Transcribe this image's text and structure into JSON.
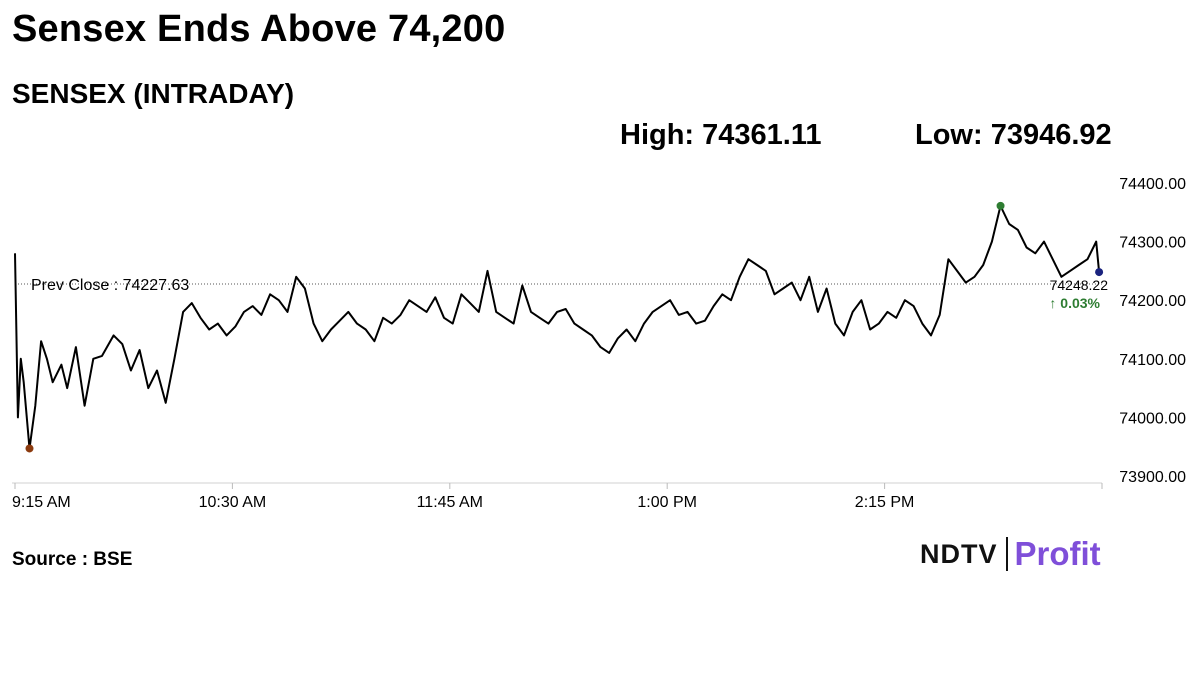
{
  "header": {
    "title": "Sensex Ends Above 74,200",
    "subtitle": "SENSEX (INTRADAY)",
    "high_label": "High: 74361.11",
    "low_label": "Low: 73946.92"
  },
  "footer": {
    "source": "Source : BSE",
    "logo_left": "NDTV",
    "logo_right": "Profit"
  },
  "colors": {
    "line": "#000000",
    "high_marker": "#2e7d32",
    "low_marker": "#8b3a0e",
    "last_marker": "#1a237e",
    "change_text": "#2e7d32",
    "logo_accent": "#7f4fd9"
  },
  "chart_data": {
    "type": "line",
    "title": "SENSEX (INTRADAY)",
    "x_tick_labels": [
      "9:15 AM",
      "10:30 AM",
      "11:45 AM",
      "1:00 PM",
      "2:15 PM"
    ],
    "y_tick_labels": [
      "74400.00",
      "74300.00",
      "74200.00",
      "74100.00",
      "74000.00",
      "73900.00"
    ],
    "y_ticks": [
      74400,
      74300,
      74200,
      74100,
      74000,
      73900
    ],
    "ylim": [
      73900,
      74400
    ],
    "x_range_minutes": [
      "9:15",
      "15:30"
    ],
    "prev_close": 74227.63,
    "prev_close_label": "Prev Close : 74227.63",
    "last_value": 74248.22,
    "last_value_label": "74248.22",
    "change_label": "↑ 0.03%",
    "high": 74361.11,
    "low": 73946.92,
    "grid": false,
    "series": [
      {
        "x": [
          "9:15",
          "9:16",
          "9:17",
          "9:18",
          "9:20",
          "9:22",
          "9:24",
          "9:26",
          "9:28",
          "9:31",
          "9:33",
          "9:36",
          "9:39",
          "9:42",
          "9:45",
          "9:49",
          "9:52",
          "9:55",
          "9:58",
          "10:01",
          "10:04",
          "10:07",
          "10:10",
          "10:13",
          "10:16",
          "10:19",
          "10:22",
          "10:25",
          "10:28",
          "10:31",
          "10:34",
          "10:37",
          "10:40",
          "10:43",
          "10:46",
          "10:49",
          "10:52",
          "10:55",
          "10:58",
          "11:01",
          "11:04",
          "11:07",
          "11:10",
          "11:13",
          "11:16",
          "11:19",
          "11:22",
          "11:25",
          "11:28",
          "11:31",
          "11:34",
          "11:37",
          "11:40",
          "11:43",
          "11:46",
          "11:49",
          "11:52",
          "11:55",
          "11:58",
          "12:01",
          "12:04",
          "12:07",
          "12:10",
          "12:13",
          "12:16",
          "12:19",
          "12:22",
          "12:25",
          "12:28",
          "12:31",
          "12:34",
          "12:37",
          "12:40",
          "12:43",
          "12:46",
          "12:49",
          "12:52",
          "12:55",
          "12:58",
          "13:01",
          "13:04",
          "13:07",
          "13:10",
          "13:13",
          "13:16",
          "13:19",
          "13:22",
          "13:25",
          "13:28",
          "13:31",
          "13:34",
          "13:37",
          "13:40",
          "13:43",
          "13:46",
          "13:49",
          "13:52",
          "13:55",
          "13:58",
          "14:01",
          "14:04",
          "14:07",
          "14:10",
          "14:13",
          "14:16",
          "14:19",
          "14:22",
          "14:25",
          "14:28",
          "14:31",
          "14:34",
          "14:37",
          "14:40",
          "14:43",
          "14:46",
          "14:49",
          "14:52",
          "14:55",
          "14:58",
          "15:01",
          "15:04",
          "15:07",
          "15:10",
          "15:13",
          "15:16",
          "15:19",
          "15:22",
          "15:25",
          "15:27",
          "15:28",
          "15:29"
        ],
        "y": [
          74280,
          74000,
          74100,
          74060,
          73947,
          74020,
          74130,
          74100,
          74060,
          74090,
          74050,
          74120,
          74020,
          74100,
          74105,
          74140,
          74125,
          74080,
          74115,
          74050,
          74080,
          74025,
          74100,
          74180,
          74195,
          74170,
          74150,
          74160,
          74140,
          74155,
          74180,
          74190,
          74175,
          74210,
          74200,
          74180,
          74240,
          74220,
          74160,
          74130,
          74150,
          74165,
          74180,
          74160,
          74150,
          74130,
          74170,
          74160,
          74175,
          74200,
          74190,
          74180,
          74205,
          74170,
          74160,
          74210,
          74195,
          74180,
          74250,
          74180,
          74170,
          74160,
          74225,
          74180,
          74170,
          74160,
          74180,
          74185,
          74160,
          74150,
          74140,
          74120,
          74110,
          74135,
          74150,
          74130,
          74160,
          74180,
          74190,
          74200,
          74175,
          74180,
          74160,
          74165,
          74190,
          74210,
          74200,
          74240,
          74270,
          74260,
          74250,
          74210,
          74220,
          74230,
          74200,
          74240,
          74180,
          74220,
          74160,
          74140,
          74180,
          74200,
          74150,
          74160,
          74180,
          74170,
          74200,
          74190,
          74160,
          74140,
          74175,
          74270,
          74250,
          74230,
          74240,
          74260,
          74300,
          74361,
          74330,
          74320,
          74290,
          74280,
          74300,
          74270,
          74240,
          74250,
          74260,
          74270,
          74290,
          74300,
          74248
        ]
      }
    ]
  }
}
